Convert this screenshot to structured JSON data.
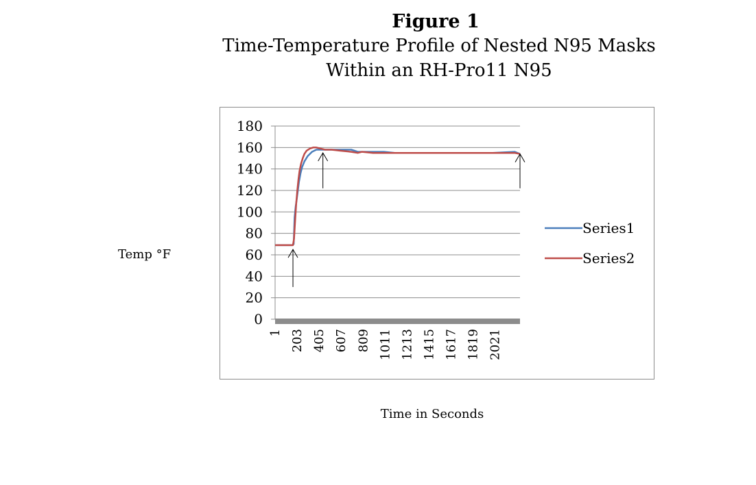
{
  "figure": {
    "label": "Figure 1",
    "title_line1": "Time-Temperature Profile of Nested N95 Masks",
    "title_line2": "Within an RH-Pro11 N95"
  },
  "colors": {
    "series1": "#4a7ebb",
    "series2": "#be4b48",
    "grid": "#8c8c8c",
    "axis": "#8c8c8c"
  },
  "chart_data": {
    "type": "line",
    "title": "Time-Temperature Profile of Nested N95 Masks Within an RH-Pro11 N95",
    "xlabel": "Time in Seconds",
    "ylabel": "Temp °F",
    "ylim": [
      0,
      180
    ],
    "yticks": [
      0,
      20,
      40,
      60,
      80,
      100,
      120,
      140,
      160,
      180
    ],
    "xlim": [
      1,
      2250
    ],
    "xticks": [
      "1",
      "203",
      "405",
      "607",
      "809",
      "1011",
      "1213",
      "1415",
      "1617",
      "1819",
      "2021"
    ],
    "grid": true,
    "legend": "right",
    "series": [
      {
        "name": "Series1",
        "x": [
          1,
          160,
          172,
          180,
          190,
          200,
          210,
          220,
          235,
          250,
          270,
          300,
          340,
          380,
          420,
          480,
          540,
          600,
          700,
          760,
          800,
          900,
          1000,
          1100,
          1200,
          1400,
          1600,
          1800,
          2000,
          2200,
          2250
        ],
        "y": [
          69,
          69,
          70,
          95,
          105,
          112,
          120,
          128,
          136,
          142,
          147,
          152,
          156,
          158,
          158,
          158,
          158,
          158,
          158,
          156,
          156,
          156,
          156,
          155,
          155,
          155,
          155,
          155,
          155,
          156,
          154
        ]
      },
      {
        "name": "Series2",
        "x": [
          1,
          165,
          175,
          185,
          195,
          205,
          215,
          225,
          240,
          255,
          270,
          290,
          320,
          350,
          380,
          420,
          460,
          520,
          600,
          700,
          760,
          800,
          900,
          1000,
          1200,
          1400,
          1600,
          1800,
          2000,
          2200,
          2250
        ],
        "y": [
          69,
          69,
          75,
          92,
          108,
          120,
          130,
          138,
          145,
          150,
          154,
          157,
          159,
          160,
          160,
          159,
          158,
          158,
          157,
          156,
          155,
          156,
          155,
          155,
          155,
          155,
          155,
          155,
          155,
          155,
          154
        ]
      }
    ],
    "annotations": [
      {
        "type": "arrow-up",
        "x": 165,
        "y_from": 30,
        "y_to": 65
      },
      {
        "type": "arrow-up",
        "x": 440,
        "y_from": 122,
        "y_to": 155
      },
      {
        "type": "arrow-up",
        "x": 2250,
        "y_from": 122,
        "y_to": 154
      }
    ]
  }
}
